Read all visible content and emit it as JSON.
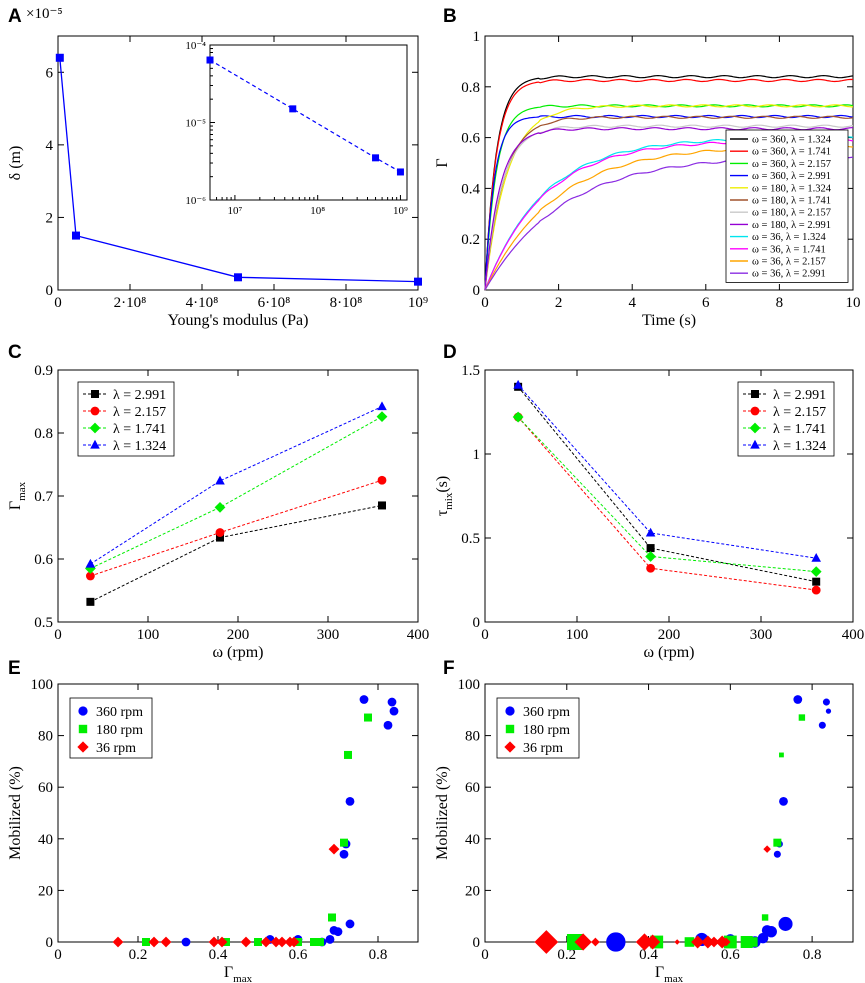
{
  "chart_data": [
    {
      "panel": "A",
      "type": "line",
      "xlabel": "Young's modulus (Pa)",
      "ylabel": "δ (m)",
      "xlim": [
        0,
        1000000000
      ],
      "ylim": [
        0,
        7e-05
      ],
      "y_multiplier": "×10⁻⁵",
      "xticks": [
        {
          "v": 0,
          "label": "0"
        },
        {
          "v": 200000000,
          "label": "2·10⁸"
        },
        {
          "v": 400000000,
          "label": "4·10⁸"
        },
        {
          "v": 600000000,
          "label": "6·10⁸"
        },
        {
          "v": 800000000,
          "label": "8·10⁸"
        },
        {
          "v": 1000000000,
          "label": "10⁹"
        }
      ],
      "yticks": [
        {
          "v": 0,
          "label": "0"
        },
        {
          "v": 2e-05,
          "label": "2"
        },
        {
          "v": 4e-05,
          "label": "4"
        },
        {
          "v": 6e-05,
          "label": "6"
        }
      ],
      "color": "#0000ff",
      "x": [
        5000000,
        50000000,
        500000000,
        1000000000
      ],
      "y": [
        6.4e-05,
        1.5e-05,
        3.5e-06,
        2.3e-06
      ],
      "inset": {
        "scale": "log-log",
        "xlim": [
          5000000,
          1200000000
        ],
        "ylim": [
          1e-06,
          0.0001
        ],
        "xticks": [
          {
            "v": 10000000,
            "label": "10⁷"
          },
          {
            "v": 100000000,
            "label": "10⁸"
          },
          {
            "v": 1000000000,
            "label": "10⁹"
          }
        ],
        "yticks": [
          {
            "v": 0.0001,
            "label": "10⁻⁴"
          },
          {
            "v": 1e-05,
            "label": "10⁻⁵"
          },
          {
            "v": 1e-06,
            "label": "10⁻⁶"
          }
        ]
      }
    },
    {
      "panel": "B",
      "type": "line",
      "xlabel": "Time (s)",
      "ylabel": "Γ",
      "xlim": [
        0,
        10
      ],
      "ylim": [
        0,
        1
      ],
      "xticks": [
        {
          "v": 0,
          "label": "0"
        },
        {
          "v": 2,
          "label": "2"
        },
        {
          "v": 4,
          "label": "4"
        },
        {
          "v": 6,
          "label": "6"
        },
        {
          "v": 8,
          "label": "8"
        },
        {
          "v": 10,
          "label": "10"
        }
      ],
      "yticks": [
        {
          "v": 0,
          "label": "0"
        },
        {
          "v": 0.2,
          "label": "0.2"
        },
        {
          "v": 0.4,
          "label": "0.4"
        },
        {
          "v": 0.6,
          "label": "0.6"
        },
        {
          "v": 0.8,
          "label": "0.8"
        },
        {
          "v": 1,
          "label": "1"
        }
      ],
      "series": [
        {
          "name": "ω = 360,  λ = 1.324",
          "color": "#000000",
          "plateau": 0.84,
          "tau": 0.3
        },
        {
          "name": "ω = 360,  λ = 1.741",
          "color": "#ff0000",
          "plateau": 0.825,
          "tau": 0.3
        },
        {
          "name": "ω = 360,  λ = 2.157",
          "color": "#00ee00",
          "plateau": 0.725,
          "tau": 0.3
        },
        {
          "name": "ω = 360,  λ = 2.991",
          "color": "#0000ff",
          "plateau": 0.683,
          "tau": 0.25
        },
        {
          "name": "ω = 180,  λ = 1.324",
          "color": "#eeee00",
          "plateau": 0.725,
          "tau": 0.6
        },
        {
          "name": "ω = 180,  λ = 1.741",
          "color": "#a0522d",
          "plateau": 0.68,
          "tau": 0.5
        },
        {
          "name": "ω = 180,  λ = 2.157",
          "color": "#c8c8c8",
          "plateau": 0.645,
          "tau": 0.45
        },
        {
          "name": "ω = 180,  λ = 2.991",
          "color": "#9400d3",
          "plateau": 0.635,
          "tau": 0.4
        },
        {
          "name": "ω = 36,  λ = 1.324",
          "color": "#00e5ee",
          "plateau": 0.6,
          "tau": 1.6
        },
        {
          "name": "ω = 36,  λ = 1.741",
          "color": "#ff00ff",
          "plateau": 0.59,
          "tau": 1.6
        },
        {
          "name": "ω = 36,  λ = 2.157",
          "color": "#ffa500",
          "plateau": 0.57,
          "tau": 1.9
        },
        {
          "name": "ω = 36,  λ = 2.991",
          "color": "#8a2be2",
          "plateau": 0.53,
          "tau": 2.1
        }
      ]
    },
    {
      "panel": "C",
      "type": "line",
      "xlabel": "ω (rpm)",
      "ylabel": "Γ",
      "ylabel_sub": "max",
      "xlim": [
        0,
        400
      ],
      "ylim": [
        0.5,
        0.9
      ],
      "xticks": [
        {
          "v": 0,
          "label": "0"
        },
        {
          "v": 100,
          "label": "100"
        },
        {
          "v": 200,
          "label": "200"
        },
        {
          "v": 300,
          "label": "300"
        },
        {
          "v": 400,
          "label": "400"
        }
      ],
      "yticks": [
        {
          "v": 0.5,
          "label": "0.5"
        },
        {
          "v": 0.6,
          "label": "0.6"
        },
        {
          "v": 0.7,
          "label": "0.7"
        },
        {
          "v": 0.8,
          "label": "0.8"
        },
        {
          "v": 0.9,
          "label": "0.9"
        }
      ],
      "x": [
        36,
        180,
        360
      ],
      "series": [
        {
          "name": "λ = 2.991",
          "color": "#000000",
          "marker": "square",
          "values": [
            0.532,
            0.634,
            0.685
          ]
        },
        {
          "name": "λ = 2.157",
          "color": "#ff0000",
          "marker": "circle",
          "values": [
            0.573,
            0.642,
            0.725
          ]
        },
        {
          "name": "λ = 1.741",
          "color": "#00ee00",
          "marker": "diamond",
          "values": [
            0.585,
            0.682,
            0.826
          ]
        },
        {
          "name": "λ = 1.324",
          "color": "#0000ff",
          "marker": "triangle",
          "values": [
            0.592,
            0.724,
            0.842
          ]
        }
      ]
    },
    {
      "panel": "D",
      "type": "line",
      "xlabel": "ω (rpm)",
      "ylabel": "τ",
      "ylabel_sub": "mix",
      "ylabel_suffix": "(s)",
      "xlim": [
        0,
        400
      ],
      "ylim": [
        0,
        1.5
      ],
      "xticks": [
        {
          "v": 0,
          "label": "0"
        },
        {
          "v": 100,
          "label": "100"
        },
        {
          "v": 200,
          "label": "200"
        },
        {
          "v": 300,
          "label": "300"
        },
        {
          "v": 400,
          "label": "400"
        }
      ],
      "yticks": [
        {
          "v": 0,
          "label": "0"
        },
        {
          "v": 0.5,
          "label": "0.5"
        },
        {
          "v": 1,
          "label": "1"
        },
        {
          "v": 1.5,
          "label": "1.5"
        }
      ],
      "x": [
        36,
        180,
        360
      ],
      "series": [
        {
          "name": "λ = 2.991",
          "color": "#000000",
          "marker": "square",
          "values": [
            1.4,
            0.44,
            0.24
          ]
        },
        {
          "name": "λ = 2.157",
          "color": "#ff0000",
          "marker": "circle",
          "values": [
            1.22,
            0.32,
            0.19
          ]
        },
        {
          "name": "λ = 1.741",
          "color": "#00ee00",
          "marker": "diamond",
          "values": [
            1.22,
            0.39,
            0.3
          ]
        },
        {
          "name": "λ = 1.324",
          "color": "#0000ff",
          "marker": "triangle",
          "values": [
            1.41,
            0.53,
            0.38
          ]
        }
      ]
    },
    {
      "panel": "E",
      "type": "scatter",
      "xlabel": "Γ",
      "xlabel_sub": "max",
      "ylabel": "Mobilized (%)",
      "xlim": [
        0,
        0.9
      ],
      "ylim": [
        0,
        100
      ],
      "xticks": [
        {
          "v": 0,
          "label": "0"
        },
        {
          "v": 0.2,
          "label": "0.2"
        },
        {
          "v": 0.4,
          "label": "0.4"
        },
        {
          "v": 0.6,
          "label": "0.6"
        },
        {
          "v": 0.8,
          "label": "0.8"
        }
      ],
      "yticks": [
        {
          "v": 0,
          "label": "0"
        },
        {
          "v": 20,
          "label": "20"
        },
        {
          "v": 40,
          "label": "40"
        },
        {
          "v": 60,
          "label": "60"
        },
        {
          "v": 80,
          "label": "80"
        },
        {
          "v": 100,
          "label": "100"
        }
      ],
      "series": [
        {
          "name": "360 rpm",
          "color": "#0000ff",
          "marker": "circle",
          "points": [
            [
              0.32,
              0
            ],
            [
              0.53,
              1
            ],
            [
              0.6,
              1
            ],
            [
              0.66,
              0
            ],
            [
              0.68,
              1
            ],
            [
              0.69,
              4.5
            ],
            [
              0.7,
              4
            ],
            [
              0.715,
              34
            ],
            [
              0.72,
              38
            ],
            [
              0.73,
              54.5
            ],
            [
              0.73,
              7
            ],
            [
              0.765,
              94
            ],
            [
              0.825,
              84
            ],
            [
              0.835,
              93
            ],
            [
              0.84,
              89.5
            ]
          ]
        },
        {
          "name": "180 rpm",
          "color": "#00ee00",
          "marker": "square",
          "points": [
            [
              0.22,
              0
            ],
            [
              0.42,
              0
            ],
            [
              0.5,
              0
            ],
            [
              0.6,
              0
            ],
            [
              0.64,
              0
            ],
            [
              0.655,
              0
            ],
            [
              0.685,
              9.5
            ],
            [
              0.715,
              38.5
            ],
            [
              0.725,
              72.5
            ],
            [
              0.775,
              87
            ]
          ]
        },
        {
          "name": "36 rpm",
          "color": "#ff0000",
          "marker": "diamond",
          "points": [
            [
              0.15,
              0
            ],
            [
              0.24,
              0
            ],
            [
              0.27,
              0
            ],
            [
              0.39,
              0
            ],
            [
              0.41,
              0
            ],
            [
              0.47,
              0
            ],
            [
              0.52,
              0
            ],
            [
              0.545,
              0
            ],
            [
              0.56,
              0
            ],
            [
              0.58,
              0
            ],
            [
              0.59,
              0
            ],
            [
              0.69,
              36
            ]
          ]
        }
      ]
    },
    {
      "panel": "F",
      "type": "scatter",
      "xlabel": "Γ",
      "xlabel_sub": "max",
      "ylabel": "Mobilized (%)",
      "xlim": [
        0,
        0.9
      ],
      "ylim": [
        0,
        100
      ],
      "xticks": [
        {
          "v": 0,
          "label": "0"
        },
        {
          "v": 0.2,
          "label": "0.2"
        },
        {
          "v": 0.4,
          "label": "0.4"
        },
        {
          "v": 0.6,
          "label": "0.6"
        },
        {
          "v": 0.8,
          "label": "0.8"
        }
      ],
      "yticks": [
        {
          "v": 0,
          "label": "0"
        },
        {
          "v": 20,
          "label": "20"
        },
        {
          "v": 40,
          "label": "40"
        },
        {
          "v": 60,
          "label": "60"
        },
        {
          "v": 80,
          "label": "80"
        },
        {
          "v": 100,
          "label": "100"
        }
      ],
      "note": "marker size proportional to relative weight",
      "series": [
        {
          "name": "360 rpm",
          "color": "#0000ff",
          "marker": "circle",
          "points": [
            [
              0.32,
              0,
              2.2
            ],
            [
              0.53,
              1,
              1.5
            ],
            [
              0.6,
              1,
              1.2
            ],
            [
              0.66,
              0,
              1.3
            ],
            [
              0.68,
              1.5,
              1.2
            ],
            [
              0.69,
              4.5,
              1.2
            ],
            [
              0.7,
              4,
              1.3
            ],
            [
              0.715,
              34,
              0.8
            ],
            [
              0.72,
              38,
              0.8
            ],
            [
              0.73,
              54.5,
              1
            ],
            [
              0.735,
              7,
              1.6
            ],
            [
              0.765,
              94,
              1
            ],
            [
              0.825,
              84,
              0.8
            ],
            [
              0.835,
              93,
              0.8
            ],
            [
              0.84,
              89.5,
              0.6
            ]
          ]
        },
        {
          "name": "180 rpm",
          "color": "#00ee00",
          "marker": "square",
          "points": [
            [
              0.22,
              0,
              2
            ],
            [
              0.42,
              0,
              1.6
            ],
            [
              0.5,
              0,
              1.2
            ],
            [
              0.6,
              0,
              1.6
            ],
            [
              0.64,
              0,
              1.5
            ],
            [
              0.655,
              0,
              1.2
            ],
            [
              0.685,
              9.5,
              0.8
            ],
            [
              0.715,
              38.5,
              1
            ],
            [
              0.725,
              72.5,
              0.6
            ],
            [
              0.775,
              87,
              0.8
            ]
          ]
        },
        {
          "name": "36 rpm",
          "color": "#ff0000",
          "marker": "diamond",
          "points": [
            [
              0.15,
              0,
              2.2
            ],
            [
              0.24,
              0,
              1.6
            ],
            [
              0.27,
              0,
              0.8
            ],
            [
              0.39,
              0,
              1.6
            ],
            [
              0.41,
              0,
              1.4
            ],
            [
              0.47,
              0,
              0.5
            ],
            [
              0.52,
              0,
              1.2
            ],
            [
              0.545,
              0,
              1.2
            ],
            [
              0.56,
              0,
              1
            ],
            [
              0.58,
              0,
              1.2
            ],
            [
              0.59,
              0,
              0.8
            ],
            [
              0.69,
              36,
              0.7
            ]
          ]
        }
      ]
    }
  ]
}
